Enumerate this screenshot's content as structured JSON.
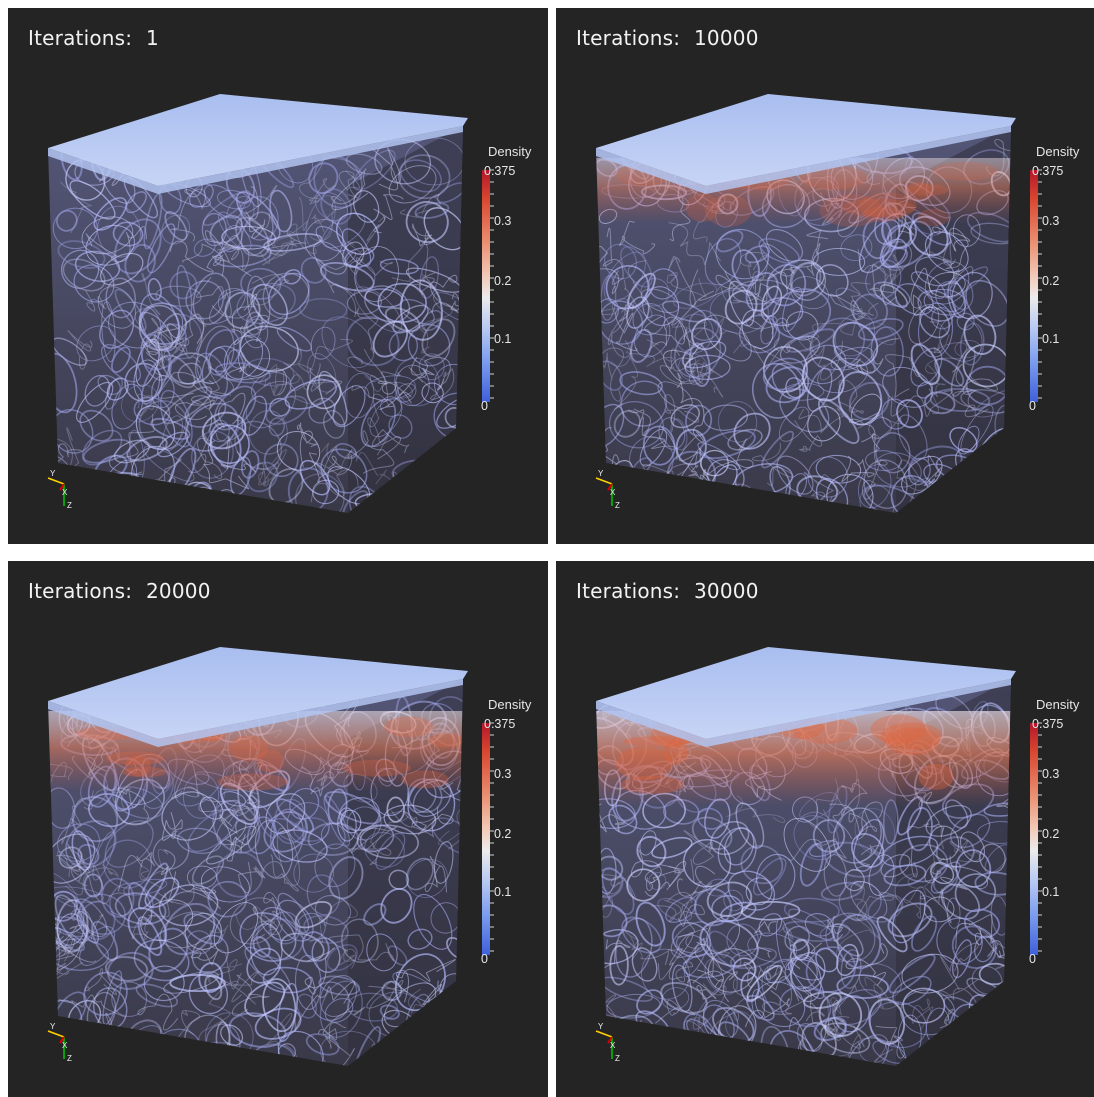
{
  "panels": [
    {
      "label": "Iterations:",
      "value": "1",
      "band": 0.0
    },
    {
      "label": "Iterations:",
      "value": "10000",
      "band": 0.45
    },
    {
      "label": "Iterations:",
      "value": "20000",
      "band": 0.75
    },
    {
      "label": "Iterations:",
      "value": "30000",
      "band": 1.0
    }
  ],
  "colorbar": {
    "title": "Density",
    "ticks": [
      "0.375",
      "0.3",
      "0.2",
      "0.1",
      "0"
    ]
  },
  "axes": {
    "x": "X",
    "y": "Y",
    "z": "Z"
  }
}
